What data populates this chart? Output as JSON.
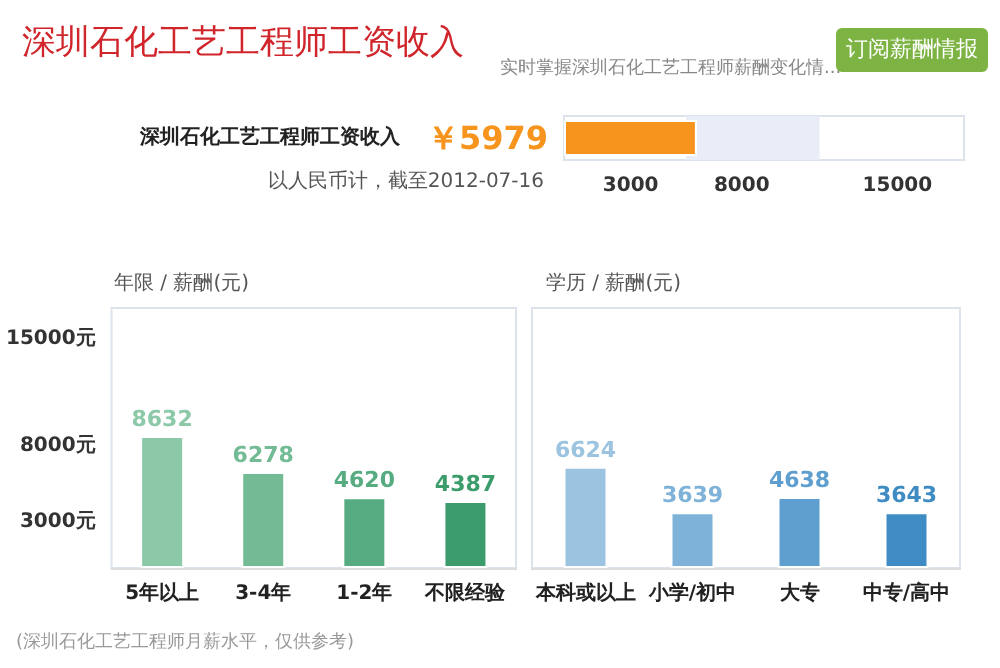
{
  "chart_data": [
    {
      "type": "bar",
      "orientation": "horizontal",
      "title": "深圳石化工艺工程师工资收入",
      "subtitle": "实时掌握深圳石化工艺工程师薪酬变化情...",
      "categories": [
        "深圳石化工艺工程师工资收入"
      ],
      "values": [
        5979
      ],
      "value_labels": [
        "￥5979"
      ],
      "color": "#f7941d",
      "xlim": [
        0,
        18000
      ],
      "xticks": [
        3000,
        8000,
        15000
      ],
      "bands": [
        {
          "axis": "x",
          "from": 5500,
          "to": 11500,
          "color": "#e8edf7"
        }
      ],
      "grid": false,
      "annotations": [
        "以人民币计，截至2012-07-16",
        "订阅薪酬情报"
      ]
    },
    {
      "type": "bar",
      "title": "年限 / 薪酬(元)",
      "categories": [
        "5年以上",
        "3-4年",
        "1-2年",
        "不限经验"
      ],
      "values": [
        8632,
        6278,
        4620,
        4387
      ],
      "colors": [
        "#8cc9a8",
        "#72bb94",
        "#56ab80",
        "#3d9c6c"
      ],
      "ylim": [
        0,
        17000
      ],
      "yticks": [
        {
          "value": 3000,
          "label": "3000元"
        },
        {
          "value": 8000,
          "label": "8000元"
        },
        {
          "value": 15000,
          "label": "15000元"
        }
      ],
      "grid": false,
      "data_labels": true,
      "annotations": [
        "(深圳石化工艺工程师月薪水平，仅供参考)"
      ]
    },
    {
      "type": "bar",
      "title": "学历 / 薪酬(元)",
      "categories": [
        "本科或以上",
        "小学/初中",
        "大专",
        "中专/高中"
      ],
      "values": [
        6624,
        3639,
        4638,
        3643
      ],
      "colors": [
        "#9cc3e0",
        "#7fb2d8",
        "#5f9fcf",
        "#3f8bc4"
      ],
      "ylim": [
        0,
        17000
      ],
      "grid": false,
      "data_labels": true,
      "tick_labels": "x"
    }
  ]
}
